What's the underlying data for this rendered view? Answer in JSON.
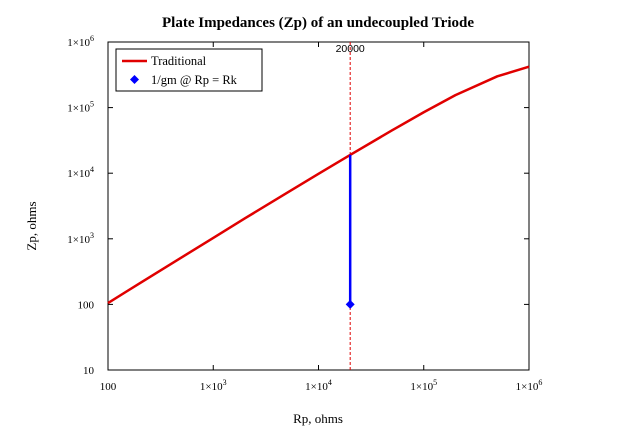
{
  "chart_data": {
    "type": "line",
    "title": "Plate Impedances (Zp) of an undecoupled Triode",
    "xlabel": "Rp, ohms",
    "ylabel": "Zp, ohms",
    "xscale": "log",
    "yscale": "log",
    "xlim": [
      100,
      1000000
    ],
    "ylim": [
      10,
      1000000
    ],
    "x_ticks": [
      {
        "value": 100,
        "base": "100",
        "exp": ""
      },
      {
        "value": 1000,
        "base": "1×10",
        "exp": "3"
      },
      {
        "value": 10000,
        "base": "1×10",
        "exp": "4"
      },
      {
        "value": 100000,
        "base": "1×10",
        "exp": "5"
      },
      {
        "value": 1000000,
        "base": "1×10",
        "exp": "6"
      }
    ],
    "y_ticks": [
      {
        "value": 10,
        "base": "10",
        "exp": ""
      },
      {
        "value": 100,
        "base": "100",
        "exp": ""
      },
      {
        "value": 1000,
        "base": "1×10",
        "exp": "3"
      },
      {
        "value": 10000,
        "base": "1×10",
        "exp": "4"
      },
      {
        "value": 100000,
        "base": "1×10",
        "exp": "5"
      },
      {
        "value": 1000000,
        "base": "1×10",
        "exp": "6"
      }
    ],
    "grid": false,
    "legend_position": "top-left",
    "series": [
      {
        "name": "Traditional",
        "color": "#e00000",
        "style": "line",
        "x": [
          100,
          200,
          500,
          1000,
          2000,
          5000,
          10000,
          20000,
          50000,
          100000,
          200000,
          500000,
          1000000
        ],
        "y": [
          105,
          210,
          520,
          1030,
          2050,
          5000,
          9800,
          19000,
          45000,
          85000,
          155000,
          300000,
          420000
        ]
      },
      {
        "name": "1/gm @ Rp = Rk",
        "color": "#0000ff",
        "style": "stem",
        "x": [
          20000
        ],
        "y": [
          100
        ],
        "stem_top": 19000
      }
    ],
    "annotations": [
      {
        "label": "20000",
        "x": 20000,
        "line_color": "#e00000",
        "line_style": "dashed"
      }
    ]
  }
}
